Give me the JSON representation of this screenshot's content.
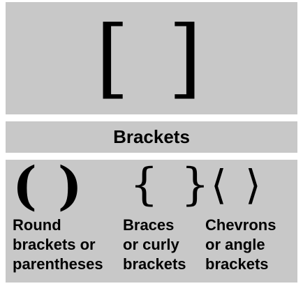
{
  "top_glyph": "[ ]",
  "title": "Brackets",
  "columns": [
    {
      "glyph": "( )",
      "label_lines": [
        "Round",
        "brackets or",
        "parentheses"
      ]
    },
    {
      "glyph": "{ }",
      "label_lines": [
        "Braces",
        "or curly",
        "brackets"
      ]
    },
    {
      "glyph": "⟨ ⟩",
      "label_lines": [
        "Chevrons",
        "or angle",
        "brackets"
      ]
    }
  ]
}
